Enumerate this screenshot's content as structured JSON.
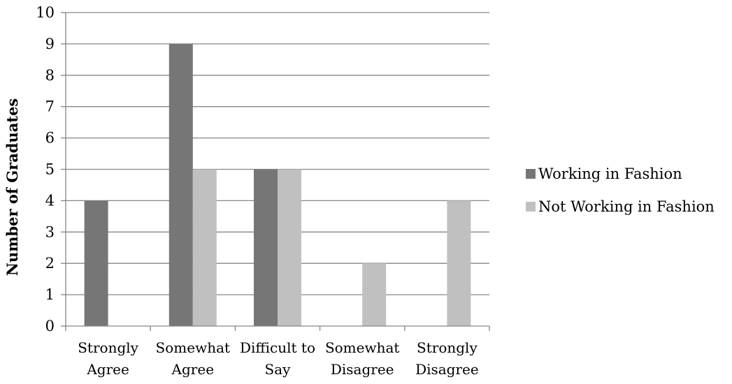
{
  "chart_data": {
    "type": "bar",
    "title": "",
    "xlabel": "",
    "ylabel": "Number of Graduates",
    "ylim": [
      0,
      10
    ],
    "yticks": [
      0,
      1,
      2,
      3,
      4,
      5,
      6,
      7,
      8,
      9,
      10
    ],
    "grid": true,
    "legend_position": "right",
    "categories": [
      [
        "Strongly",
        "Agree"
      ],
      [
        "Somewhat",
        "Agree"
      ],
      [
        "Difficult to",
        "Say"
      ],
      [
        "Somewhat",
        "Disagree"
      ],
      [
        "Strongly",
        "Disagree"
      ]
    ],
    "series": [
      {
        "name": "Working in Fashion",
        "color": "#767676",
        "values": [
          4,
          9,
          5,
          0,
          0
        ]
      },
      {
        "name": "Not Working in Fashion",
        "color": "#c0c0c0",
        "values": [
          0,
          5,
          5,
          2,
          4
        ]
      }
    ]
  }
}
